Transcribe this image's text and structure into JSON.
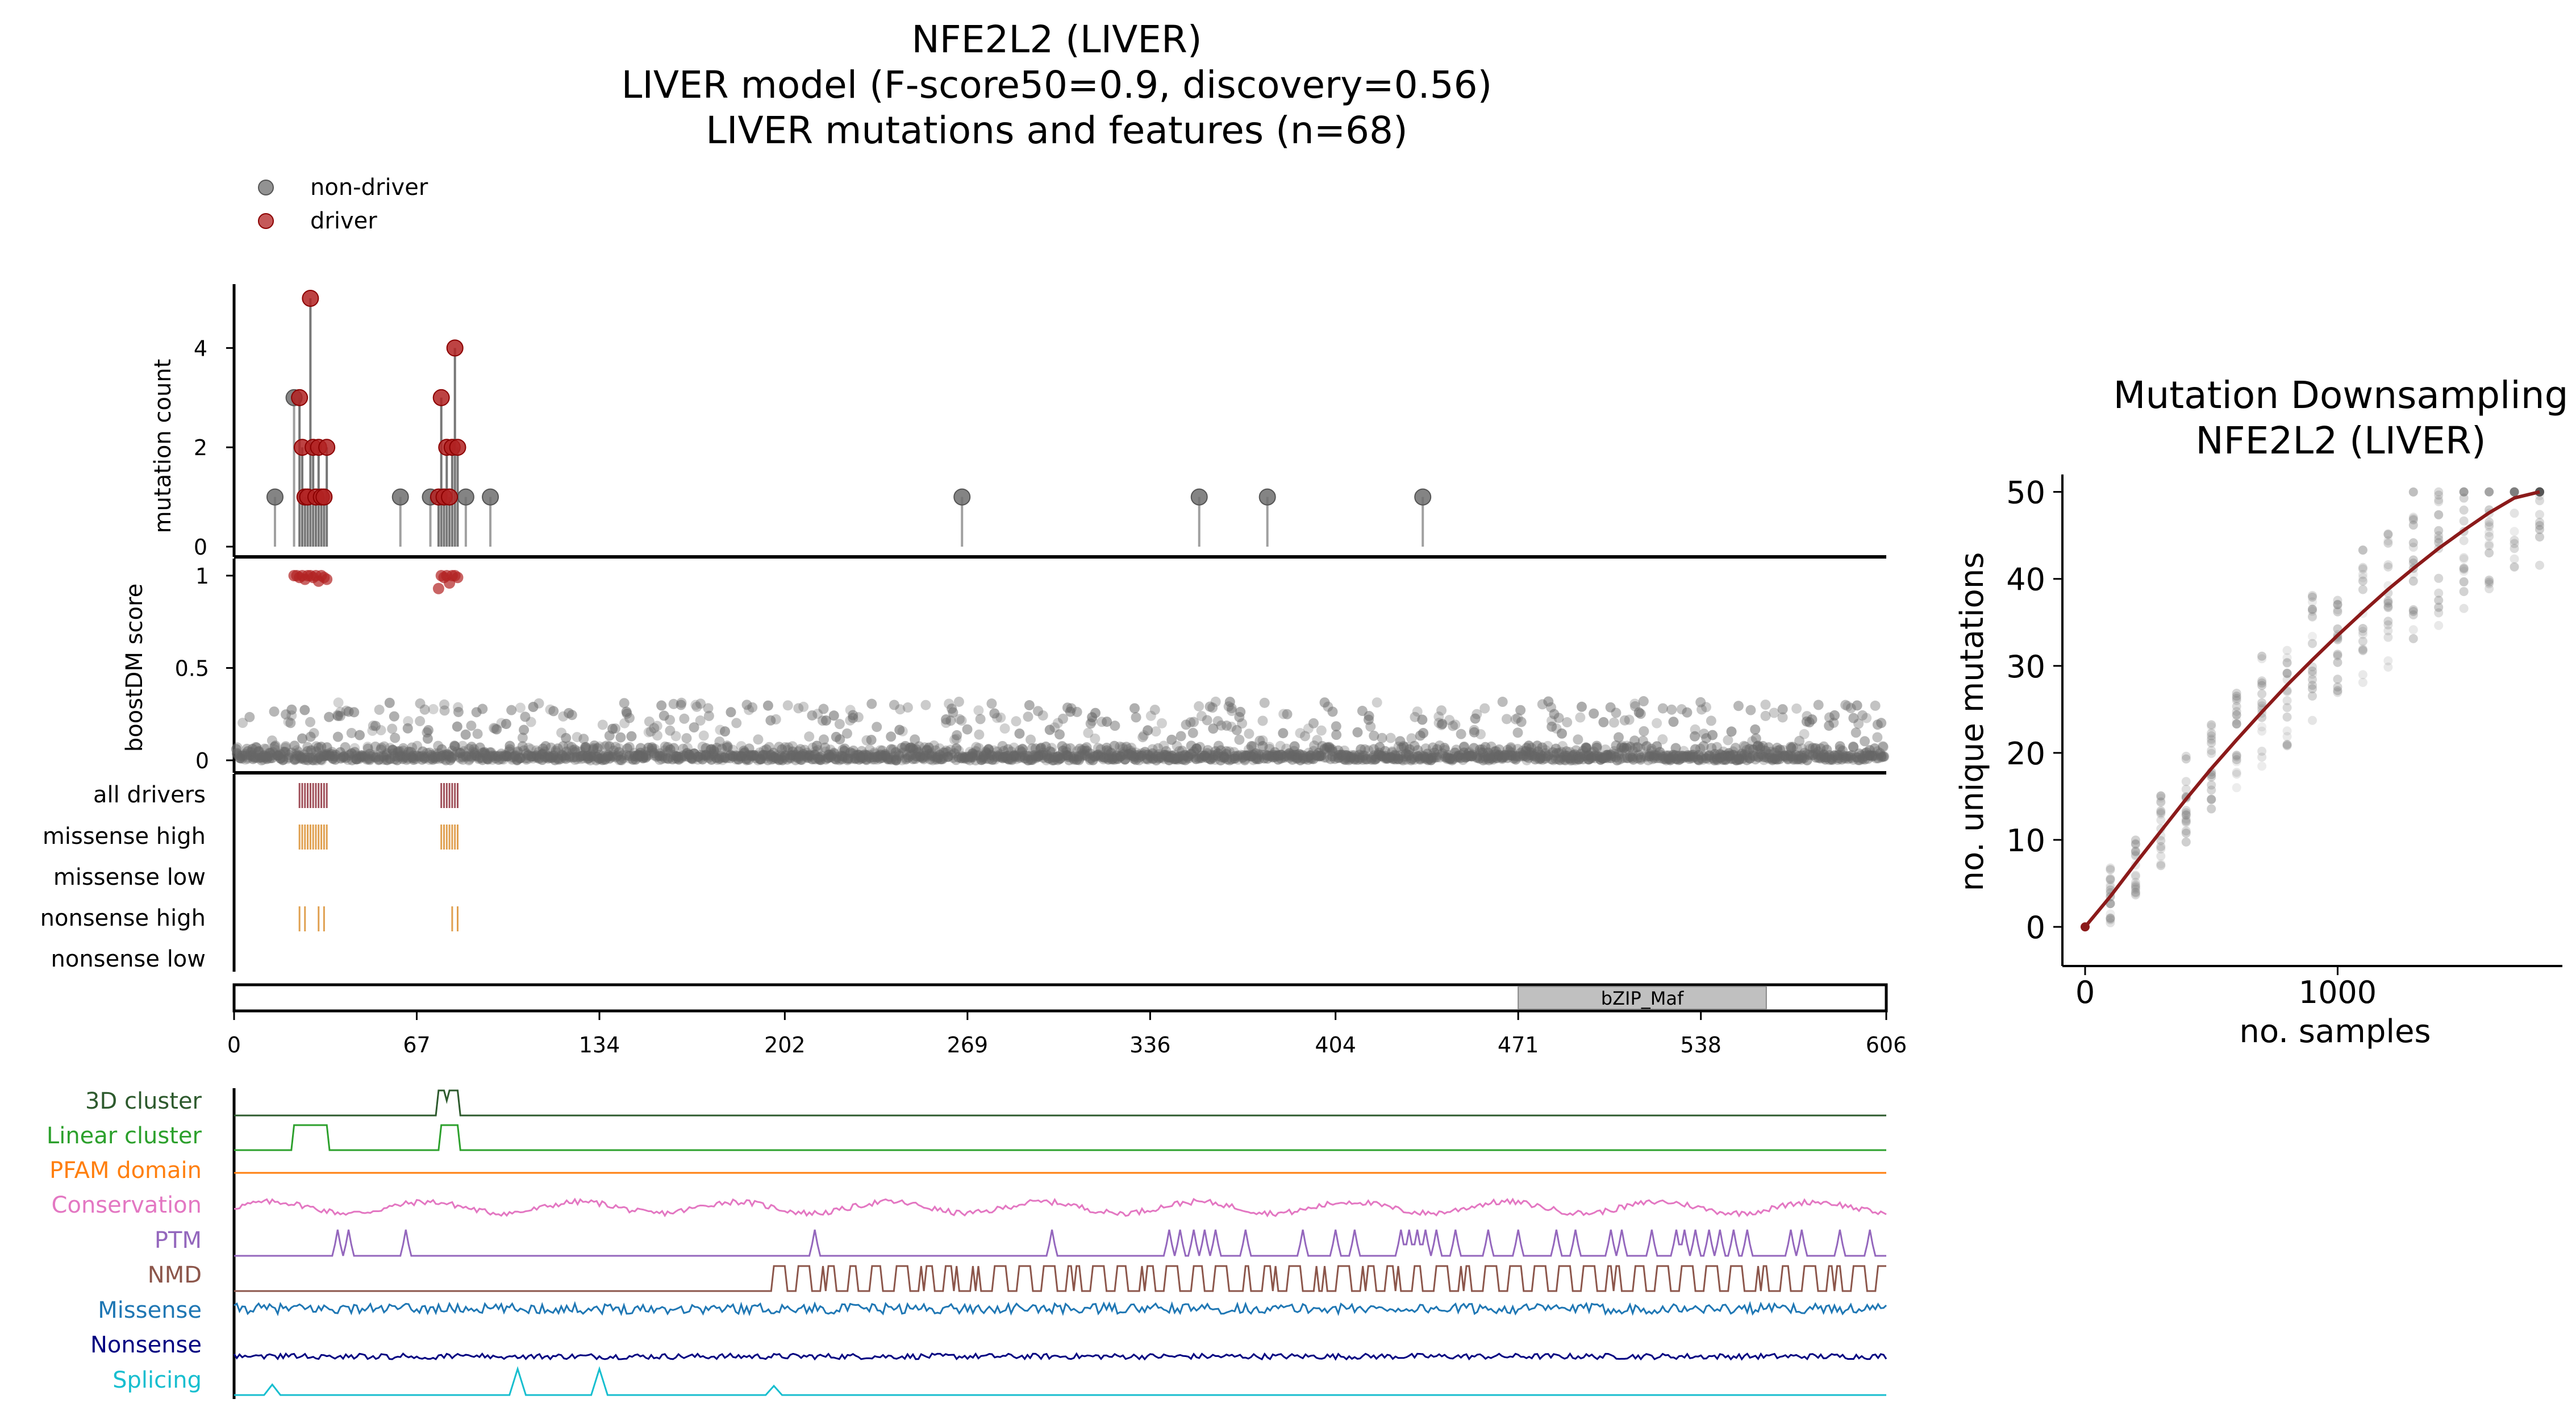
{
  "main_title": {
    "line1": "NFE2L2 (LIVER)",
    "line2": "LIVER model (F-score50=0.9, discovery=0.56)",
    "line3": "LIVER mutations and features (n=68)"
  },
  "colors": {
    "driver": "#b22222",
    "non_driver": "#6e6e6e",
    "all_drivers_ticks": "#a0505a",
    "high_ticks": "#e0a050",
    "domain_fill": "#c0c0c0",
    "downsampling_line": "#8b1a1a",
    "3d_cluster": "#2d5a2d",
    "linear_cluster": "#2ca02c",
    "pfam_domain": "#ff7f0e",
    "conservation": "#e377c2",
    "ptm": "#9467bd",
    "nmd": "#8c564b",
    "missense": "#1f77b4",
    "nonsense": "#000080",
    "splicing": "#17becf"
  },
  "chart_data": [
    {
      "type": "scatter",
      "panel": "lollipop",
      "ylabel": "mutation count",
      "xlim": [
        0,
        606
      ],
      "ylim": [
        0,
        5.2
      ],
      "yticks": [
        0,
        2,
        4
      ],
      "legend": {
        "placement": "top-left",
        "entries": [
          "non-driver",
          "driver"
        ]
      },
      "series": [
        {
          "name": "non-driver",
          "points": [
            {
              "x": 15,
              "y": 1
            },
            {
              "x": 22,
              "y": 3
            },
            {
              "x": 61,
              "y": 1
            },
            {
              "x": 72,
              "y": 1
            },
            {
              "x": 85,
              "y": 1
            },
            {
              "x": 94,
              "y": 1
            },
            {
              "x": 267,
              "y": 1
            },
            {
              "x": 354,
              "y": 1
            },
            {
              "x": 379,
              "y": 1
            },
            {
              "x": 436,
              "y": 1
            }
          ]
        },
        {
          "name": "driver",
          "points": [
            {
              "x": 24,
              "y": 3
            },
            {
              "x": 25,
              "y": 2
            },
            {
              "x": 26,
              "y": 1
            },
            {
              "x": 27,
              "y": 1
            },
            {
              "x": 28,
              "y": 5
            },
            {
              "x": 29,
              "y": 2
            },
            {
              "x": 30,
              "y": 1
            },
            {
              "x": 31,
              "y": 2
            },
            {
              "x": 32,
              "y": 1
            },
            {
              "x": 33,
              "y": 1
            },
            {
              "x": 34,
              "y": 2
            },
            {
              "x": 75,
              "y": 1
            },
            {
              "x": 76,
              "y": 3
            },
            {
              "x": 77,
              "y": 1
            },
            {
              "x": 78,
              "y": 2
            },
            {
              "x": 79,
              "y": 1
            },
            {
              "x": 80,
              "y": 2
            },
            {
              "x": 81,
              "y": 4
            },
            {
              "x": 82,
              "y": 2
            }
          ]
        }
      ]
    },
    {
      "type": "scatter",
      "panel": "boostdm",
      "ylabel": "boostDM score",
      "xlim": [
        0,
        606
      ],
      "ylim": [
        0,
        1.05
      ],
      "yticks": [
        0,
        0.5,
        1
      ],
      "ytick_labels": [
        "0",
        "0.5",
        "1"
      ],
      "background_note_free": true,
      "driver_points_x": [
        22,
        23,
        24,
        25,
        26,
        27,
        28,
        29,
        30,
        31,
        32,
        33,
        34,
        75,
        76,
        77,
        78,
        79,
        80,
        81,
        82
      ],
      "driver_points_y": [
        1.0,
        1.0,
        0.99,
        1.0,
        0.98,
        1.0,
        1.0,
        0.99,
        1.0,
        0.97,
        1.0,
        0.99,
        0.98,
        0.93,
        1.0,
        0.99,
        1.0,
        0.96,
        1.0,
        1.0,
        0.99
      ],
      "background_score_range": [
        0,
        0.35
      ]
    },
    {
      "type": "table",
      "panel": "feature_ticks",
      "rows": [
        "all drivers",
        "missense high",
        "missense low",
        "nonsense high",
        "nonsense low"
      ],
      "ticks": {
        "all drivers": [
          24,
          25,
          26,
          27,
          28,
          29,
          30,
          31,
          32,
          33,
          34,
          76,
          77,
          78,
          79,
          80,
          81,
          82
        ],
        "missense high": [
          24,
          25,
          26,
          27,
          28,
          29,
          30,
          31,
          32,
          33,
          34,
          76,
          77,
          78,
          79,
          80,
          81,
          82
        ],
        "missense low": [],
        "nonsense high": [
          24,
          26,
          31,
          33,
          80,
          82
        ],
        "nonsense low": []
      }
    },
    {
      "type": "bar",
      "panel": "protein_axis",
      "xlim": [
        0,
        606
      ],
      "xticks": [
        0,
        67,
        134,
        202,
        269,
        336,
        404,
        471,
        538,
        606
      ],
      "domains": [
        {
          "name": "bZIP_Maf",
          "start": 471,
          "end": 562
        }
      ]
    },
    {
      "type": "line",
      "panel": "features",
      "tracks": [
        "3D cluster",
        "Linear cluster",
        "PFAM domain",
        "Conservation",
        "PTM",
        "NMD",
        "Missense",
        "Nonsense",
        "Splicing"
      ],
      "3d_cluster_regions": [
        [
          75,
          82
        ]
      ],
      "linear_cluster_regions": [
        [
          22,
          34
        ],
        [
          76,
          82
        ]
      ],
      "ptm_peaks": [
        38,
        42,
        63,
        213,
        300,
        343,
        347,
        352,
        356,
        360,
        371,
        392,
        404,
        411,
        428,
        431,
        434,
        437,
        441,
        448,
        460,
        471,
        485,
        492,
        505,
        509,
        520,
        529,
        532,
        536,
        541,
        545,
        550,
        555,
        571,
        575,
        589,
        600
      ],
      "nmd_region_start": 197,
      "splicing_peaks": [
        {
          "x": 14,
          "h": 0.4
        },
        {
          "x": 104,
          "h": 1.0
        },
        {
          "x": 134,
          "h": 1.0
        },
        {
          "x": 198,
          "h": 0.35
        }
      ]
    },
    {
      "type": "scatter",
      "panel": "downsampling",
      "title": "Mutation Downsampling\nNFE2L2 (LIVER)",
      "xlabel": "no. samples",
      "ylabel": "no. unique mutations",
      "xlim": [
        -90,
        1890
      ],
      "ylim": [
        -4.5,
        52
      ],
      "xticks": [
        0,
        1000
      ],
      "yticks": [
        0,
        10,
        20,
        30,
        40,
        50
      ],
      "curve": {
        "x": [
          0,
          100,
          200,
          300,
          400,
          500,
          600,
          700,
          800,
          900,
          1000,
          1100,
          1200,
          1300,
          1400,
          1500,
          1600,
          1700,
          1800
        ],
        "y": [
          0,
          3.5,
          7.3,
          11.0,
          14.7,
          18.2,
          21.5,
          24.7,
          27.8,
          30.7,
          33.5,
          36.2,
          38.8,
          41.2,
          43.5,
          45.6,
          47.6,
          49.3,
          50
        ]
      }
    }
  ],
  "lollipop_panel": {
    "ylabel": "mutation count",
    "legend": {
      "non_driver": "non-driver",
      "driver": "driver"
    },
    "ytick_labels": [
      "0",
      "2",
      "4"
    ]
  },
  "boost_panel": {
    "ylabel": "boostDM score",
    "ytick_labels": [
      "0",
      "0.5",
      "1"
    ]
  },
  "feature_rows": {
    "all_drivers": "all drivers",
    "missense_high": "missense high",
    "missense_low": "missense low",
    "nonsense_high": "nonsense high",
    "nonsense_low": "nonsense low"
  },
  "protein_axis": {
    "domain_label": "bZIP_Maf",
    "xtick_labels": [
      "0",
      "67",
      "134",
      "202",
      "269",
      "336",
      "404",
      "471",
      "538",
      "606"
    ]
  },
  "tracks": {
    "cluster3d": "3D cluster",
    "linear": "Linear cluster",
    "pfam": "PFAM domain",
    "conservation": "Conservation",
    "ptm": "PTM",
    "nmd": "NMD",
    "missense": "Missense",
    "nonsense": "Nonsense",
    "splicing": "Splicing"
  },
  "downsampling": {
    "title_line1": "Mutation Downsampling",
    "title_line2": "NFE2L2 (LIVER)",
    "xlabel": "no. samples",
    "ylabel": "no. unique mutations",
    "xtick_labels": [
      "0",
      "1000"
    ],
    "ytick_labels": [
      "0",
      "10",
      "20",
      "30",
      "40",
      "50"
    ]
  }
}
